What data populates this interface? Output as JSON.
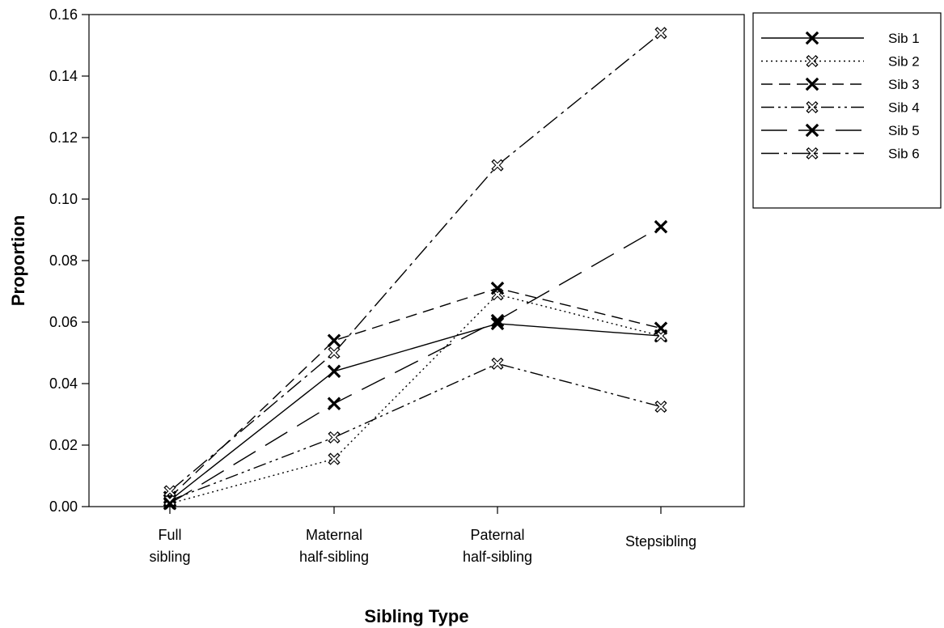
{
  "chart_data": {
    "type": "line",
    "title": "",
    "xlabel": "Sibling Type",
    "ylabel": "Proportion",
    "categories": [
      [
        "Full",
        "sibling"
      ],
      [
        "Maternal",
        "half-sibling"
      ],
      [
        "Paternal",
        "half-sibling"
      ],
      [
        "Stepsibling"
      ]
    ],
    "ylim": [
      0,
      0.16
    ],
    "yticks": [
      "0.00",
      "0.02",
      "0.04",
      "0.06",
      "0.08",
      "0.10",
      "0.12",
      "0.14",
      "0.16"
    ],
    "legend_position": "outside-top-right",
    "grid": false,
    "series": [
      {
        "name": "Sib 1",
        "dash": "solid",
        "marker": "bold-x",
        "values": [
          0.002,
          0.044,
          0.0595,
          0.0555
        ]
      },
      {
        "name": "Sib 2",
        "dash": "dotted",
        "marker": "hollow-x",
        "values": [
          0.001,
          0.0155,
          0.069,
          0.0555
        ]
      },
      {
        "name": "Sib 3",
        "dash": "short-dash",
        "marker": "bold-x",
        "values": [
          0.003,
          0.054,
          0.071,
          0.058
        ]
      },
      {
        "name": "Sib 4",
        "dash": "dash-dot-dot",
        "marker": "hollow-x",
        "values": [
          0.002,
          0.0225,
          0.0465,
          0.0325
        ]
      },
      {
        "name": "Sib 5",
        "dash": "long-dash",
        "marker": "bold-x",
        "values": [
          0.001,
          0.0335,
          0.0605,
          0.091
        ]
      },
      {
        "name": "Sib 6",
        "dash": "dash-dot",
        "marker": "hollow-x",
        "values": [
          0.005,
          0.05,
          0.111,
          0.154
        ]
      }
    ]
  }
}
